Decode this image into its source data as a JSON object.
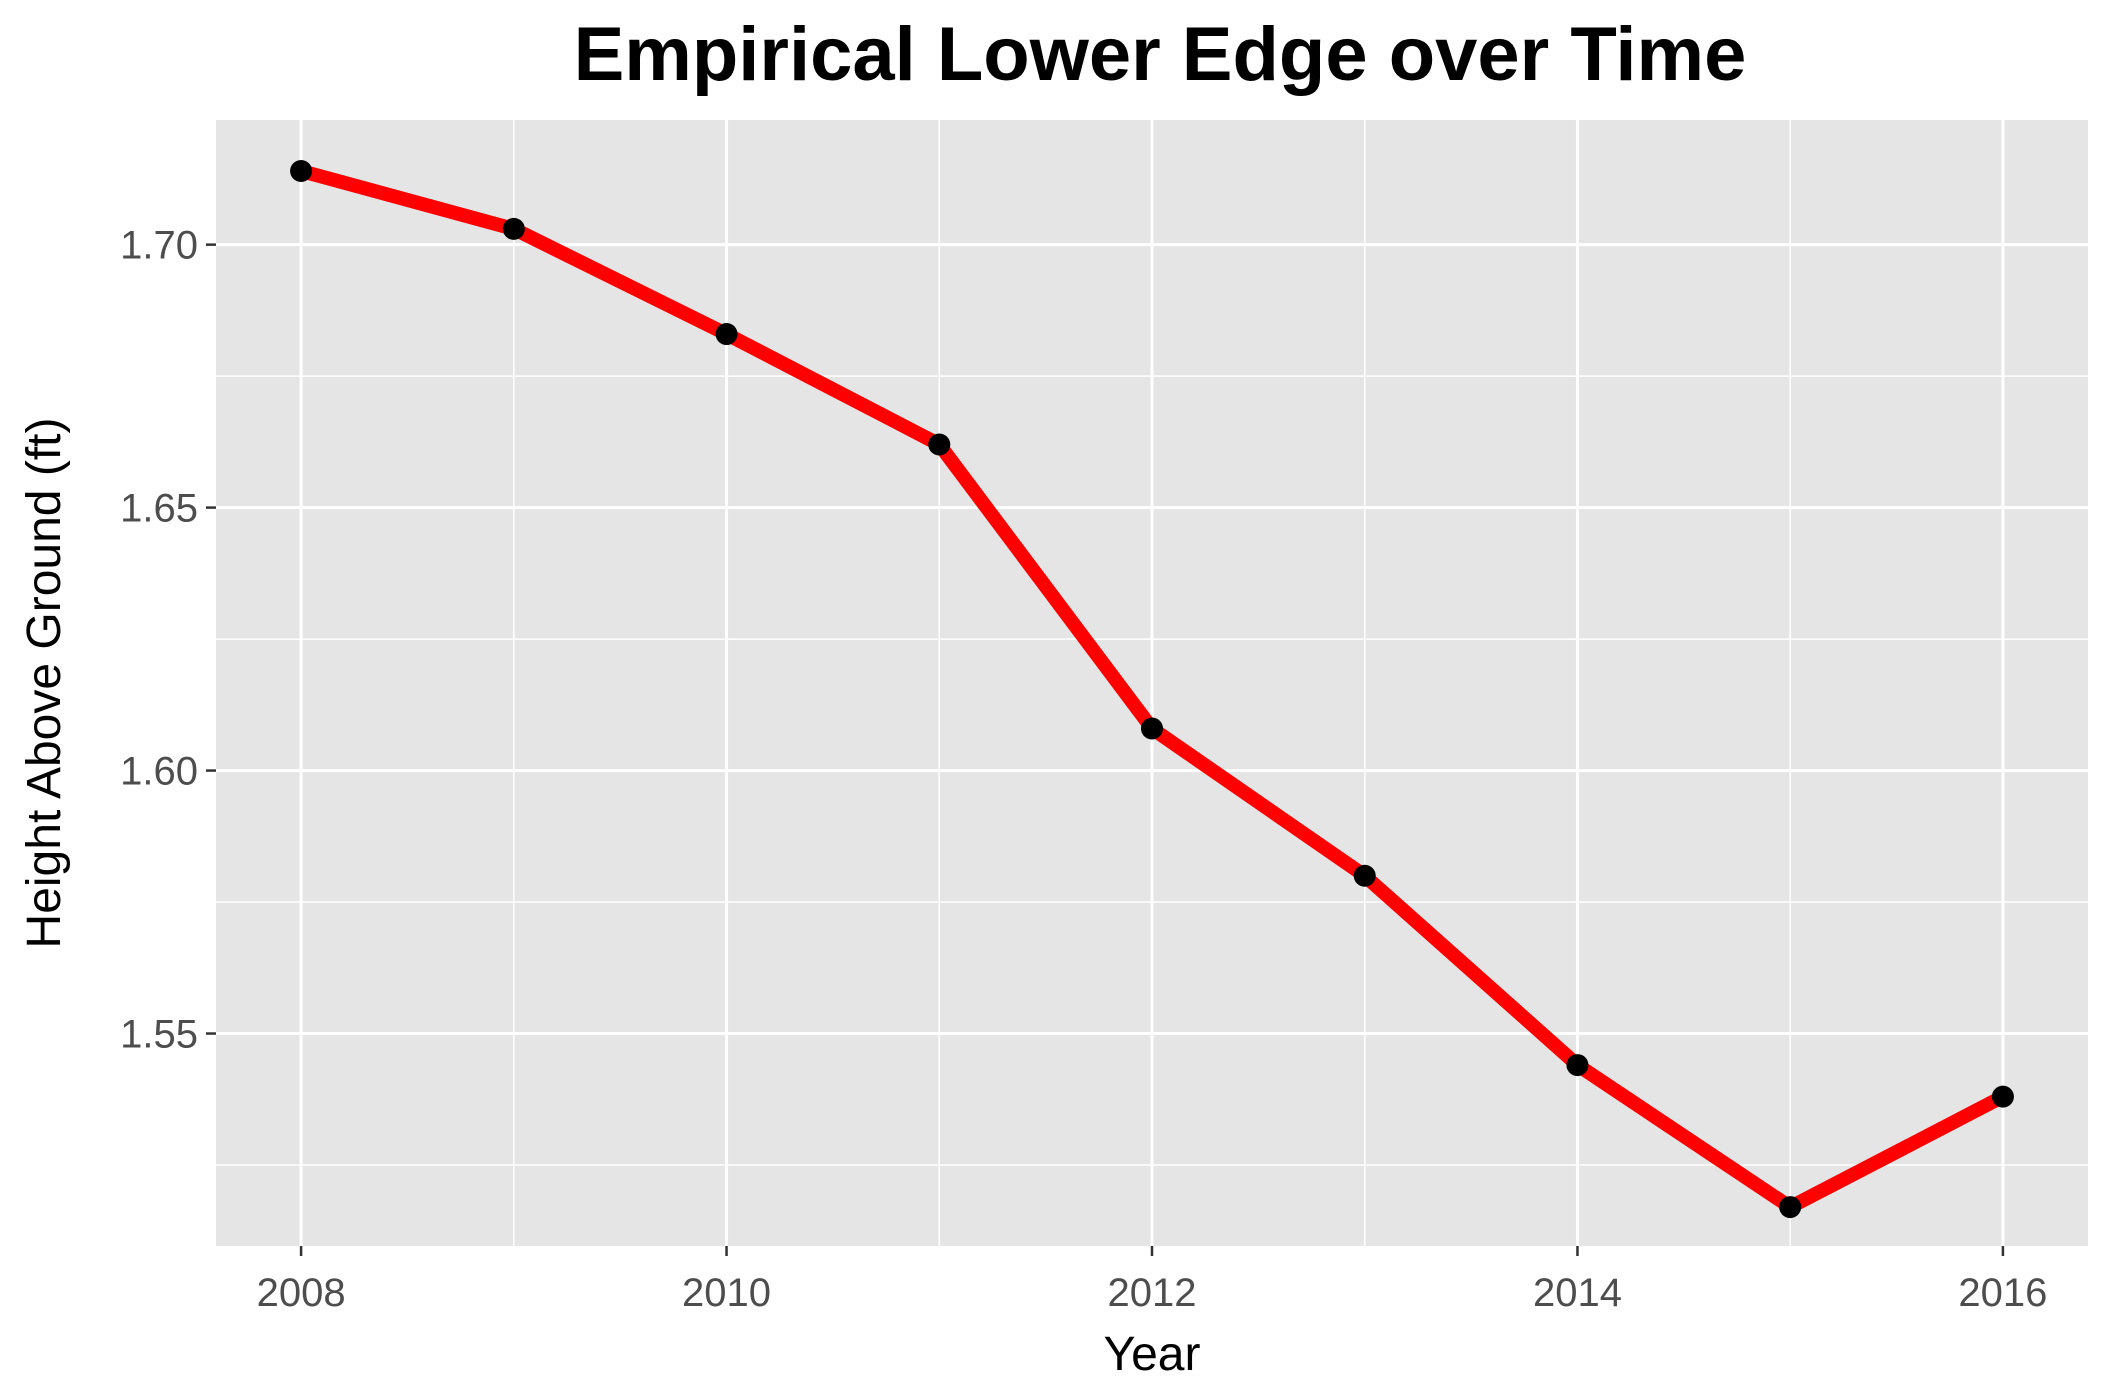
{
  "chart_data": {
    "type": "line",
    "title": "Empirical Lower Edge over Time",
    "xlabel": "Year",
    "ylabel": "Height Above Ground (ft)",
    "x": [
      2008,
      2009,
      2010,
      2011,
      2012,
      2013,
      2014,
      2015,
      2016
    ],
    "series": [
      {
        "values": [
          1.714,
          1.703,
          1.683,
          1.662,
          1.608,
          1.58,
          1.544,
          1.517,
          1.538
        ],
        "line_color": "#ff0000",
        "point_color": "#000000"
      }
    ],
    "xlim": [
      2007.6,
      2016.4
    ],
    "ylim": [
      1.5096,
      1.7237
    ],
    "x_ticks": [
      2008,
      2010,
      2012,
      2014,
      2016
    ],
    "x_tick_labels": [
      "2008",
      "2010",
      "2012",
      "2014",
      "2016"
    ],
    "y_ticks": [
      1.55,
      1.6,
      1.65,
      1.7
    ],
    "y_tick_labels": [
      "1.55",
      "1.60",
      "1.65",
      "1.70"
    ],
    "x_minor_ticks": [
      2009,
      2011,
      2013,
      2015
    ],
    "y_minor_ticks": [
      1.525,
      1.575,
      1.625,
      1.675
    ],
    "grid": true,
    "legend": "none",
    "colors": {
      "panel_background": "#e5e5e5",
      "grid": "#ffffff",
      "tick_label": "#4d4d4d",
      "axis_tick": "#333333"
    }
  }
}
